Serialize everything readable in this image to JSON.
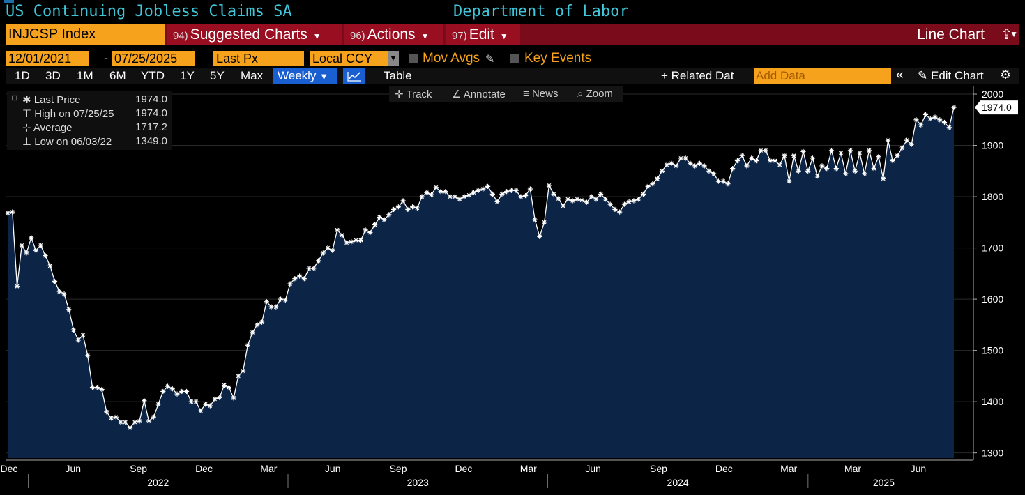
{
  "header": {
    "title_left": "US Continuing Jobless Claims SA",
    "title_right": "Department of Labor"
  },
  "toolbar": {
    "ticker": "INJCSP Index",
    "suggested": {
      "num": "94)",
      "label": "Suggested Charts"
    },
    "actions": {
      "num": "96)",
      "label": "Actions"
    },
    "edit": {
      "num": "97)",
      "label": "Edit"
    },
    "chart_type": "Line Chart",
    "export_icon": "export-icon"
  },
  "row2": {
    "start_date": "12/01/2021",
    "end_date": "07/25/2025",
    "field": "Last Px",
    "currency": "Local CCY",
    "mov_avgs": "Mov Avgs",
    "key_events": "Key Events"
  },
  "row3": {
    "ranges": [
      "1D",
      "3D",
      "1M",
      "6M",
      "YTD",
      "1Y",
      "5Y",
      "Max"
    ],
    "frequency": "Weekly",
    "table": "Table",
    "related": "+ Related Dat",
    "add_data_placeholder": "Add Data",
    "collapse": "«",
    "edit_chart": "Edit Chart"
  },
  "tools": {
    "track": "Track",
    "annotate": "Annotate",
    "news": "News",
    "zoom": "Zoom"
  },
  "legend": {
    "last_label": "Last Price",
    "last_value": "1974.0",
    "high_label": "High on 07/25/25",
    "high_value": "1974.0",
    "avg_label": "Average",
    "avg_value": "1717.2",
    "low_label": "Low on 06/03/22",
    "low_value": "1349.0"
  },
  "colors": {
    "accent_orange": "#f7a21c",
    "toolbar_red": "#7a0b1a",
    "area_fill": "#0c2547",
    "title_cyan": "#3fc6d8"
  },
  "chart_data": {
    "type": "area",
    "series": [
      {
        "name": "Last Price",
        "values": [
          1768,
          1770,
          1625,
          1705,
          1690,
          1720,
          1695,
          1705,
          1685,
          1665,
          1635,
          1615,
          1610,
          1580,
          1540,
          1520,
          1530,
          1490,
          1428,
          1428,
          1424,
          1380,
          1368,
          1370,
          1360,
          1360,
          1349,
          1360,
          1362,
          1402,
          1362,
          1370,
          1395,
          1420,
          1430,
          1425,
          1415,
          1420,
          1420,
          1400,
          1400,
          1382,
          1395,
          1392,
          1405,
          1408,
          1432,
          1428,
          1407,
          1450,
          1460,
          1510,
          1535,
          1550,
          1555,
          1595,
          1585,
          1585,
          1600,
          1598,
          1630,
          1640,
          1645,
          1640,
          1660,
          1660,
          1675,
          1690,
          1700,
          1695,
          1735,
          1725,
          1710,
          1712,
          1715,
          1715,
          1735,
          1730,
          1745,
          1760,
          1755,
          1765,
          1775,
          1780,
          1792,
          1775,
          1780,
          1778,
          1800,
          1808,
          1804,
          1818,
          1810,
          1810,
          1800,
          1800,
          1795,
          1800,
          1803,
          1808,
          1812,
          1815,
          1820,
          1805,
          1790,
          1805,
          1810,
          1812,
          1812,
          1800,
          1802,
          1815,
          1755,
          1722,
          1750,
          1822,
          1805,
          1796,
          1782,
          1795,
          1792,
          1795,
          1793,
          1789,
          1800,
          1795,
          1805,
          1795,
          1785,
          1775,
          1770,
          1785,
          1790,
          1792,
          1795,
          1805,
          1820,
          1825,
          1835,
          1850,
          1862,
          1865,
          1860,
          1875,
          1875,
          1865,
          1860,
          1865,
          1860,
          1850,
          1845,
          1830,
          1830,
          1825,
          1855,
          1870,
          1880,
          1860,
          1875,
          1870,
          1890,
          1890,
          1870,
          1870,
          1862,
          1880,
          1830,
          1880,
          1850,
          1888,
          1850,
          1875,
          1840,
          1860,
          1855,
          1890,
          1855,
          1885,
          1845,
          1890,
          1850,
          1885,
          1845,
          1890,
          1855,
          1878,
          1835,
          1910,
          1870,
          1880,
          1895,
          1910,
          1902,
          1950,
          1940,
          1960,
          1952,
          1955,
          1950,
          1945,
          1935,
          1974
        ]
      }
    ],
    "x_start": "2021-12-03",
    "x_end": "2025-07-25",
    "x_tick_labels": [
      "Dec",
      "Mar",
      "Jun",
      "Sep",
      "Dec",
      "Mar",
      "Jun",
      "Sep",
      "Dec",
      "Mar",
      "Jun",
      "Sep",
      "Dec",
      "Mar",
      "Jun"
    ],
    "year_labels": [
      "2022",
      "2023",
      "2024",
      "2025"
    ],
    "ylim": [
      1290,
      2015
    ],
    "y_ticks": [
      1300,
      1400,
      1500,
      1600,
      1700,
      1800,
      1900,
      2000
    ],
    "last_value_label": "1974.0",
    "grid": true
  }
}
